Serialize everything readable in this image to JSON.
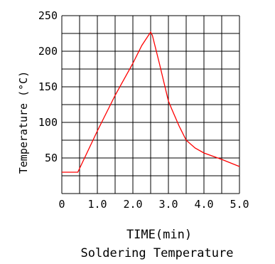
{
  "chart_data": {
    "type": "line",
    "title": "Soldering Temperature",
    "xlabel": "TIME(min)",
    "ylabel": "Temperature (°C)",
    "xlim": [
      0,
      5
    ],
    "ylim": [
      0,
      250
    ],
    "x_ticks": [
      "0",
      "1.0",
      "2.0",
      "3.0",
      "4.0",
      "5.0"
    ],
    "y_ticks": [
      "50",
      "100",
      "150",
      "200",
      "250"
    ],
    "grid": true,
    "line_color": "#ff0000",
    "series": [
      {
        "x": [
          0,
          0.45,
          1.0,
          1.5,
          2.0,
          2.25,
          2.5,
          2.55,
          2.75,
          3.0,
          3.1,
          3.3,
          3.5,
          3.75,
          4.0,
          4.5,
          5.0
        ],
        "y": [
          30,
          30,
          88,
          138,
          183,
          208,
          227,
          222,
          182,
          130,
          118,
          95,
          75,
          64,
          57,
          48,
          38
        ]
      }
    ]
  }
}
